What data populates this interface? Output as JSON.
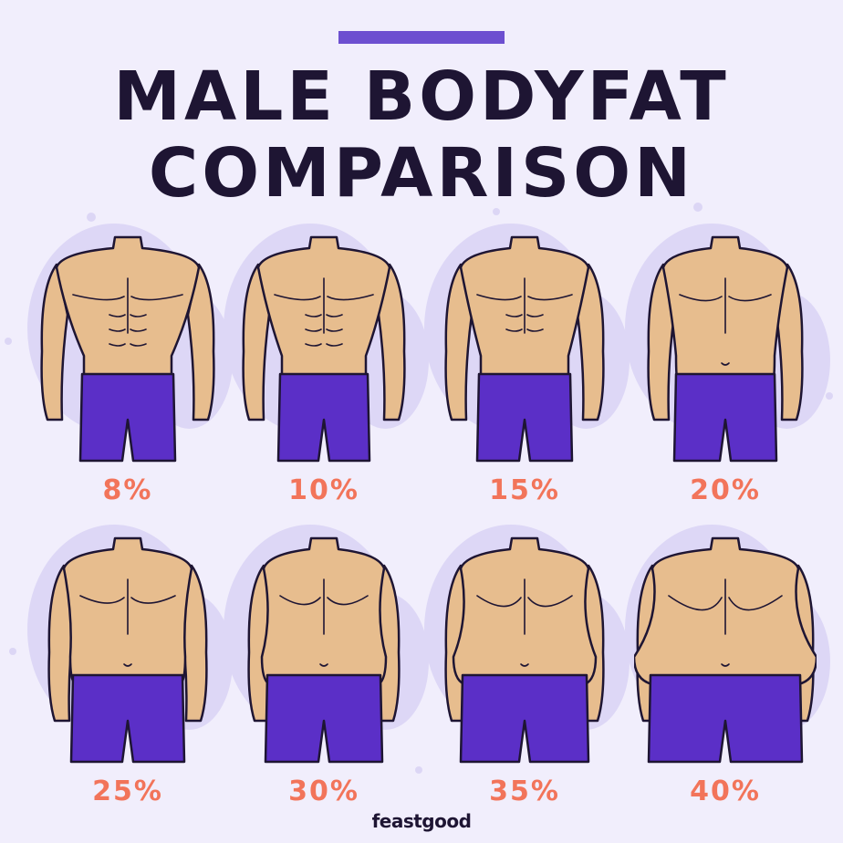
{
  "header": {
    "accent_bar_color": "#6d4fd0",
    "title_line1": "MALE BODYFAT",
    "title_line2": "COMPARISON"
  },
  "figures": [
    {
      "label": "8%",
      "build": "very lean, defined six-pack"
    },
    {
      "label": "10%",
      "build": "lean, visible abs"
    },
    {
      "label": "15%",
      "build": "fit, faint abs"
    },
    {
      "label": "20%",
      "build": "soft, minimal definition"
    },
    {
      "label": "25%",
      "build": "soft chest, slight belly"
    },
    {
      "label": "30%",
      "build": "rounder belly"
    },
    {
      "label": "35%",
      "build": "protruding belly"
    },
    {
      "label": "40%",
      "build": "large belly overhanging shorts"
    }
  ],
  "colors": {
    "background": "#f1eefc",
    "skin": "#e7bd8e",
    "shorts": "#5b2fc7",
    "outline": "#1e1533",
    "label": "#f2745a",
    "blob": "#ddd7f6"
  },
  "footer": {
    "brand": "feastgood"
  }
}
